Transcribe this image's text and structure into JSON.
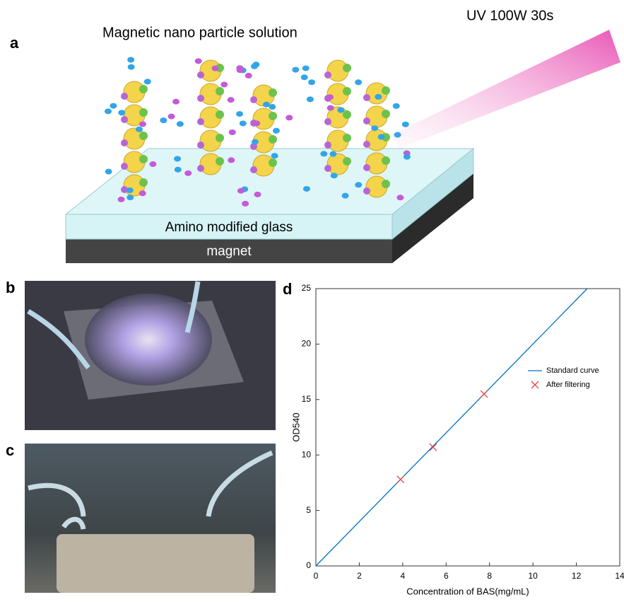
{
  "panels": {
    "a": {
      "label": "a",
      "solution": "Magnetic nano particle solution",
      "uv": "UV 100W 30s",
      "glass": "Amino modified glass",
      "magnet": "magnet"
    },
    "b": {
      "label": "b"
    },
    "c": {
      "label": "c"
    },
    "d": {
      "label": "d"
    }
  },
  "chart_data": {
    "type": "line",
    "xlabel": "Concentration of BAS(mg/mL)",
    "ylabel": "OD540",
    "xlim": [
      0,
      14
    ],
    "ylim": [
      0,
      25
    ],
    "xticks": [
      0,
      2,
      4,
      6,
      8,
      10,
      12,
      14
    ],
    "yticks": [
      0,
      5,
      10,
      15,
      20,
      25
    ],
    "legend": "right",
    "series": [
      {
        "name": "Standard curve",
        "type": "line",
        "color": "#0072bd",
        "x": [
          0,
          12.5
        ],
        "values": [
          0,
          25
        ]
      },
      {
        "name": "After filtering",
        "type": "scatter",
        "color": "#e8453c",
        "x": [
          3.9,
          5.4,
          7.75
        ],
        "values": [
          7.8,
          10.7,
          15.5
        ]
      }
    ]
  }
}
